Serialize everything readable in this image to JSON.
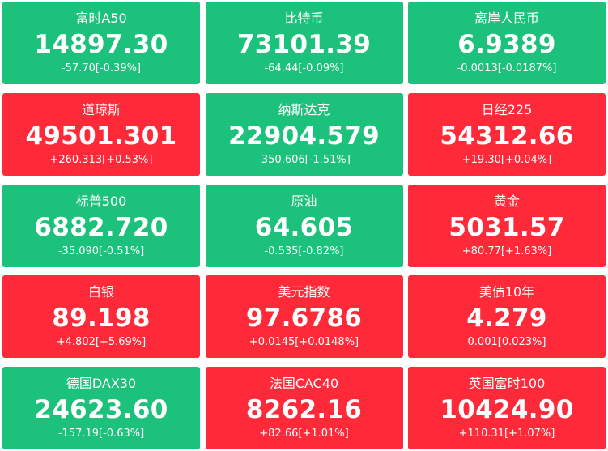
{
  "colors": {
    "up": "#fe2a3a",
    "down": "#1cc17b",
    "text": "#ffffff"
  },
  "tiles": [
    {
      "name": "富时A50",
      "price": "14897.30",
      "change": "-57.70[-0.39%]",
      "trend": "down"
    },
    {
      "name": "比特币",
      "price": "73101.39",
      "change": "-64.44[-0.09%]",
      "trend": "down"
    },
    {
      "name": "离岸人民币",
      "price": "6.9389",
      "change": "-0.0013[-0.0187%]",
      "trend": "down"
    },
    {
      "name": "道琼斯",
      "price": "49501.301",
      "change": "+260.313[+0.53%]",
      "trend": "up"
    },
    {
      "name": "纳斯达克",
      "price": "22904.579",
      "change": "-350.606[-1.51%]",
      "trend": "down"
    },
    {
      "name": "日经225",
      "price": "54312.66",
      "change": "+19.30[+0.04%]",
      "trend": "up"
    },
    {
      "name": "标普500",
      "price": "6882.720",
      "change": "-35.090[-0.51%]",
      "trend": "down"
    },
    {
      "name": "原油",
      "price": "64.605",
      "change": "-0.535[-0.82%]",
      "trend": "down"
    },
    {
      "name": "黄金",
      "price": "5031.57",
      "change": "+80.77[+1.63%]",
      "trend": "up"
    },
    {
      "name": "白银",
      "price": "89.198",
      "change": "+4.802[+5.69%]",
      "trend": "up"
    },
    {
      "name": "美元指数",
      "price": "97.6786",
      "change": "+0.0145[+0.0148%]",
      "trend": "up"
    },
    {
      "name": "美债10年",
      "price": "4.279",
      "change": "0.001[0.023%]",
      "trend": "up"
    },
    {
      "name": "德国DAX30",
      "price": "24623.60",
      "change": "-157.19[-0.63%]",
      "trend": "down"
    },
    {
      "name": "法国CAC40",
      "price": "8262.16",
      "change": "+82.66[+1.01%]",
      "trend": "up"
    },
    {
      "name": "英国富时100",
      "price": "10424.90",
      "change": "+110.31[+1.07%]",
      "trend": "up"
    }
  ]
}
